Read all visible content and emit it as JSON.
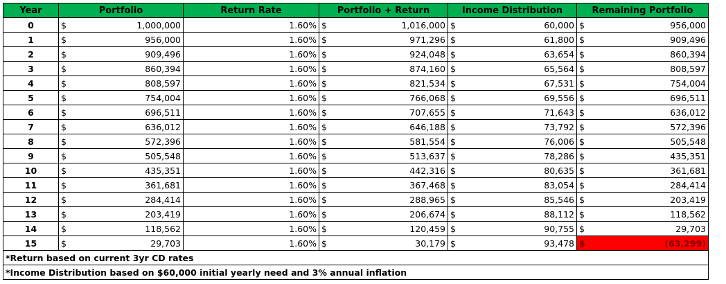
{
  "headers": [
    "Year",
    "Portfolio",
    "Return Rate",
    "Portfolio + Return",
    "Income Distribution",
    "Remaining Portfolio"
  ],
  "currency_symbol": "$",
  "rows": [
    {
      "year": "0",
      "portfolio": "1,000,000",
      "rate": "1.60%",
      "plus_return": "1,016,000",
      "income": "60,000",
      "remaining": "956,000"
    },
    {
      "year": "1",
      "portfolio": "956,000",
      "rate": "1.60%",
      "plus_return": "971,296",
      "income": "61,800",
      "remaining": "909,496"
    },
    {
      "year": "2",
      "portfolio": "909,496",
      "rate": "1.60%",
      "plus_return": "924,048",
      "income": "63,654",
      "remaining": "860,394"
    },
    {
      "year": "3",
      "portfolio": "860,394",
      "rate": "1.60%",
      "plus_return": "874,160",
      "income": "65,564",
      "remaining": "808,597"
    },
    {
      "year": "4",
      "portfolio": "808,597",
      "rate": "1.60%",
      "plus_return": "821,534",
      "income": "67,531",
      "remaining": "754,004"
    },
    {
      "year": "5",
      "portfolio": "754,004",
      "rate": "1.60%",
      "plus_return": "766,068",
      "income": "69,556",
      "remaining": "696,511"
    },
    {
      "year": "6",
      "portfolio": "696,511",
      "rate": "1.60%",
      "plus_return": "707,655",
      "income": "71,643",
      "remaining": "636,012"
    },
    {
      "year": "7",
      "portfolio": "636,012",
      "rate": "1.60%",
      "plus_return": "646,188",
      "income": "73,792",
      "remaining": "572,396"
    },
    {
      "year": "8",
      "portfolio": "572,396",
      "rate": "1.60%",
      "plus_return": "581,554",
      "income": "76,006",
      "remaining": "505,548"
    },
    {
      "year": "9",
      "portfolio": "505,548",
      "rate": "1.60%",
      "plus_return": "513,637",
      "income": "78,286",
      "remaining": "435,351"
    },
    {
      "year": "10",
      "portfolio": "435,351",
      "rate": "1.60%",
      "plus_return": "442,316",
      "income": "80,635",
      "remaining": "361,681"
    },
    {
      "year": "11",
      "portfolio": "361,681",
      "rate": "1.60%",
      "plus_return": "367,468",
      "income": "83,054",
      "remaining": "284,414"
    },
    {
      "year": "12",
      "portfolio": "284,414",
      "rate": "1.60%",
      "plus_return": "288,965",
      "income": "85,546",
      "remaining": "203,419"
    },
    {
      "year": "13",
      "portfolio": "203,419",
      "rate": "1.60%",
      "plus_return": "206,674",
      "income": "88,112",
      "remaining": "118,562"
    },
    {
      "year": "14",
      "portfolio": "118,562",
      "rate": "1.60%",
      "plus_return": "120,459",
      "income": "90,755",
      "remaining": "29,703"
    },
    {
      "year": "15",
      "portfolio": "29,703",
      "rate": "1.60%",
      "plus_return": "30,179",
      "income": "93,478",
      "remaining": "(63,299)",
      "negative": true
    }
  ],
  "notes": [
    "*Return based on current 3yr CD rates",
    "*Income Distribution based on $60,000 initial yearly need and 3% annual inflation"
  ],
  "colors": {
    "header_bg": "#00b050",
    "negative_bg": "#ff0000",
    "negative_text": "#7f0000"
  }
}
